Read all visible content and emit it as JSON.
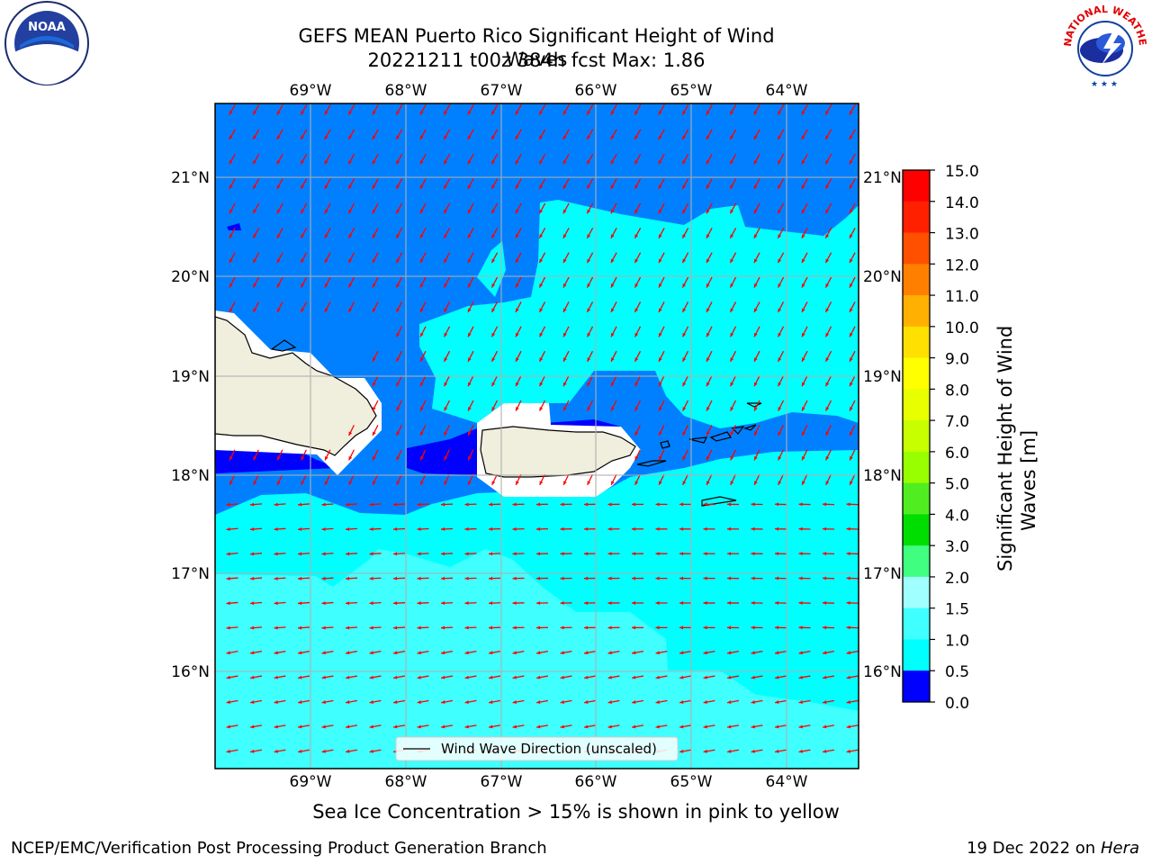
{
  "title": {
    "line1": "GEFS MEAN Puerto Rico Significant Height of Wind Waves",
    "line2": "20221211 t00z 384h fcst   Max: 1.86"
  },
  "map": {
    "lon_labels": [
      "69°W",
      "68°W",
      "67°W",
      "66°W",
      "65°W",
      "64°W"
    ],
    "lat_labels": [
      "21°N",
      "20°N",
      "19°N",
      "18°N",
      "17°N",
      "16°N"
    ],
    "legend_label": "Wind Wave Direction (unscaled)",
    "colors": {
      "land": "#f0eedc",
      "level_0": "#0000ff",
      "level_05": "#0080ff",
      "level_1": "#00ffff",
      "level_15": "#40ffff",
      "level_2": "#a0ffff",
      "arrow": "#ff0000"
    }
  },
  "colorbar": {
    "label": "Significant Height of Wind Waves [m]",
    "ticks": [
      "15.0",
      "14.0",
      "13.0",
      "12.0",
      "11.0",
      "10.0",
      "9.0",
      "8.0",
      "7.0",
      "6.0",
      "5.0",
      "4.0",
      "3.0",
      "2.0",
      "1.5",
      "1.0",
      "0.5",
      "0.0"
    ],
    "colors": [
      "#ff0000",
      "#ff2000",
      "#ff5000",
      "#ff8000",
      "#ffb000",
      "#ffe000",
      "#ffff00",
      "#e8ff00",
      "#c8ff00",
      "#98ff00",
      "#50ee20",
      "#00dd00",
      "#40ff80",
      "#a0ffff",
      "#40ffff",
      "#00ffff",
      "#0080ff",
      "#0000ff"
    ]
  },
  "subnote": "Sea Ice Concentration > 15% is shown in pink to yellow",
  "footer": {
    "left": "NCEP/EMC/Verification Post Processing Product Generation Branch",
    "right_date": "19 Dec 2022 on",
    "right_host": "Hera"
  },
  "logos": {
    "noaa": "NOAA",
    "nws_ring": "NATIONAL WEATHER SERVICE"
  }
}
